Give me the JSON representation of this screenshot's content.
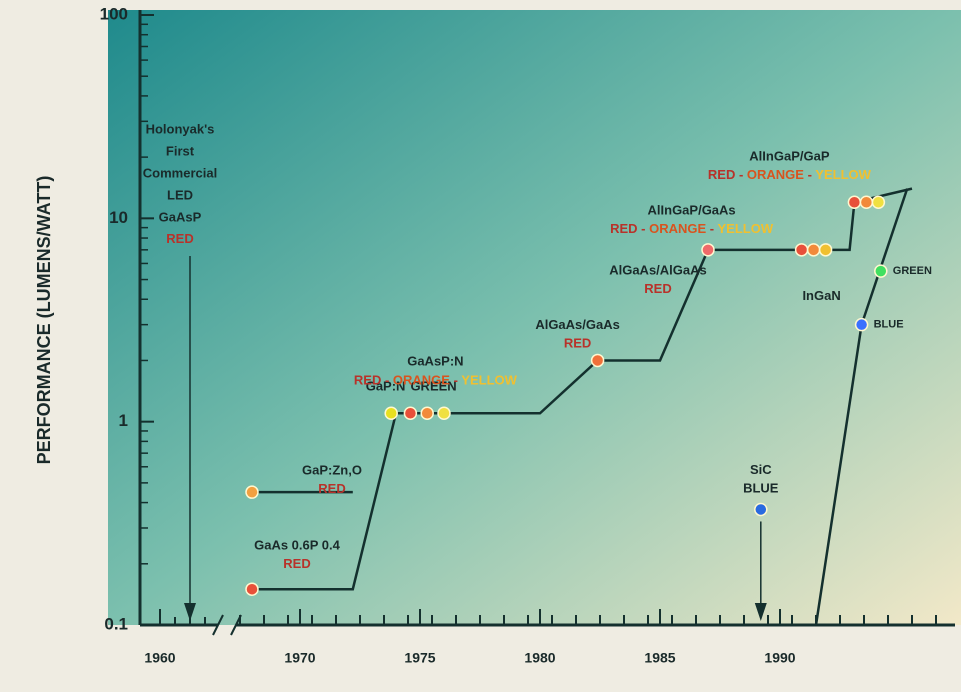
{
  "chart_data": {
    "type": "scatter",
    "y_label": "PERFORMANCE (LUMENS/WATT)",
    "log_y": true,
    "ylim": [
      0.1,
      100
    ],
    "yticks": [
      0.1,
      1,
      10,
      100
    ],
    "xlim": [
      1960,
      1996
    ],
    "x_break": [
      1962,
      1967.5
    ],
    "xticks": [
      1960,
      1970,
      1975,
      1980,
      1985,
      1990
    ],
    "separator": " - ",
    "series": [
      {
        "note": [
          "Holonyak's",
          "First",
          "Commercial",
          "LED"
        ],
        "name": "GaAsP",
        "words": [
          {
            "text": "RED",
            "color": "#b8322a"
          }
        ],
        "x": [
          1962
        ],
        "values": [
          0.1
        ],
        "colors": [
          "#1a2a2a"
        ],
        "marker": false,
        "arrow": true
      },
      {
        "name": "GaAs 0.6P 0.4",
        "words": [
          {
            "text": "RED",
            "color": "#b8322a"
          }
        ],
        "x": [
          1968
        ],
        "values": [
          0.15
        ],
        "colors": [
          "#e8503a"
        ]
      },
      {
        "name": "GaP:Zn,O",
        "words": [
          {
            "text": "RED",
            "color": "#b8322a"
          }
        ],
        "x": [
          1968
        ],
        "values": [
          0.45
        ],
        "colors": [
          "#f2a040"
        ]
      },
      {
        "name": "GaP:N",
        "words": [
          {
            "text": "GREEN",
            "color": "#1a2a2a"
          }
        ],
        "x": [
          1973.8
        ],
        "values": [
          1.1
        ],
        "colors": [
          "#e8e020"
        ],
        "inline": true
      },
      {
        "name": "GaAsP:N",
        "words": [
          {
            "text": "RED",
            "color": "#b8322a"
          },
          {
            "text": "ORANGE",
            "color": "#d9531e"
          },
          {
            "text": "YELLOW",
            "color": "#f0c030"
          }
        ],
        "x": [
          1974.6,
          1975.3,
          1976
        ],
        "values": [
          1.1,
          1.1,
          1.1
        ],
        "colors": [
          "#e8503a",
          "#f28a3a",
          "#f0e040"
        ]
      },
      {
        "name": "AlGaAs/GaAs",
        "words": [
          {
            "text": "RED",
            "color": "#b8322a"
          }
        ],
        "x": [
          1982.4
        ],
        "values": [
          2
        ],
        "colors": [
          "#f0703a"
        ]
      },
      {
        "name": "AlGaAs/AlGaAs",
        "words": [
          {
            "text": "RED",
            "color": "#b8322a"
          }
        ],
        "x": [
          1987
        ],
        "values": [
          7
        ],
        "colors": [
          "#f06a6a"
        ]
      },
      {
        "name": "AlInGaP/GaAs",
        "words": [
          {
            "text": "RED",
            "color": "#b8322a"
          },
          {
            "text": "ORANGE",
            "color": "#d9531e"
          },
          {
            "text": "YELLOW",
            "color": "#f0c030"
          }
        ],
        "x": [
          1990.9,
          1991.4,
          1991.9
        ],
        "values": [
          7,
          7,
          7
        ],
        "colors": [
          "#e8503a",
          "#f28a3a",
          "#f0c030"
        ]
      },
      {
        "name": "AlInGaP/GaP",
        "words": [
          {
            "text": "RED",
            "color": "#b8322a"
          },
          {
            "text": "ORANGE",
            "color": "#d9531e"
          },
          {
            "text": "YELLOW",
            "color": "#f0c030"
          }
        ],
        "x": [
          1993.1,
          1993.6,
          1994.1
        ],
        "values": [
          12,
          12,
          12
        ],
        "colors": [
          "#e8503a",
          "#f28a3a",
          "#f0e040"
        ]
      },
      {
        "name": "SiC",
        "words": [
          {
            "text": "BLUE",
            "color": "#1a2a2a"
          }
        ],
        "x": [
          1989.2
        ],
        "values": [
          0.37
        ],
        "colors": [
          "#2a6ae0"
        ],
        "arrow": true
      },
      {
        "name": "InGaN",
        "words": [
          {
            "text": "BLUE",
            "color": "#1a2a2a"
          },
          {
            "text": "GREEN",
            "color": "#1a2a2a"
          }
        ],
        "x": [
          1993.4,
          1994.2
        ],
        "values": [
          3,
          5.5
        ],
        "colors": [
          "#3a70ff",
          "#40e060"
        ],
        "per_point": true
      }
    ],
    "lines": [
      {
        "x": [
          1968,
          1972.2,
          1974,
          1980,
          1982.4,
          1985,
          1987,
          1990.9,
          1992.9,
          1993.1,
          1995.5
        ],
        "values": [
          0.15,
          0.15,
          1.1,
          1.1,
          2,
          2,
          7,
          7,
          7,
          12,
          14
        ]
      },
      {
        "x": [
          1968,
          1972.2
        ],
        "values": [
          0.45,
          0.45
        ]
      },
      {
        "x": [
          1991.5,
          1993.4,
          1995.3
        ],
        "values": [
          0.1,
          3,
          14
        ]
      }
    ]
  }
}
